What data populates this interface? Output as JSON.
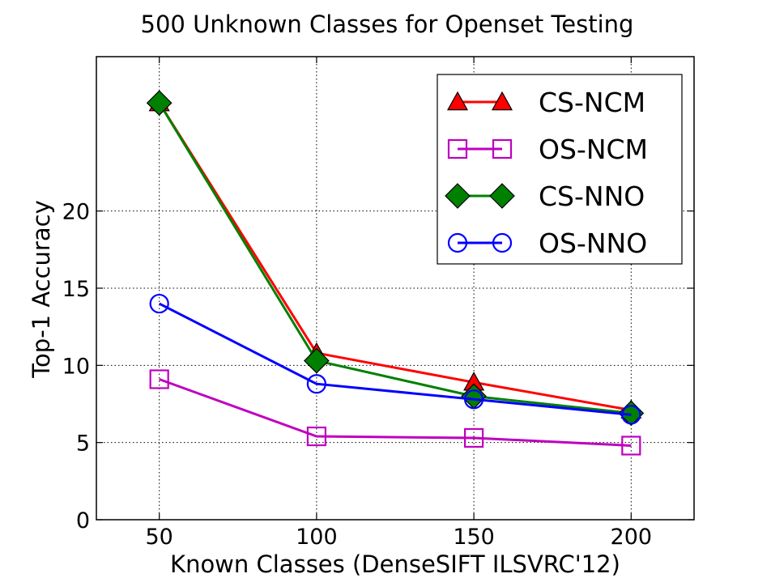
{
  "chart_data": {
    "type": "line",
    "title": "500 Unknown Classes for Openset Testing",
    "xlabel": "Known Classes (DenseSIFT ILSVRC'12)",
    "ylabel": "Top-1 Accuracy",
    "x": [
      50,
      100,
      150,
      200
    ],
    "xlim": [
      30,
      220
    ],
    "ylim": [
      0,
      30
    ],
    "xticks": [
      50,
      100,
      150,
      200
    ],
    "yticks": [
      0,
      5,
      10,
      15,
      20
    ],
    "xtick_labels": [
      "50",
      "100",
      "150",
      "200"
    ],
    "ytick_labels": [
      "0",
      "5",
      "10",
      "15",
      "20"
    ],
    "grid": true,
    "legend_position": "top-right",
    "series": [
      {
        "name": "CS-NCM",
        "values": [
          27.0,
          10.8,
          8.9,
          7.1
        ],
        "color": "#ff0000",
        "marker": "triangle"
      },
      {
        "name": "OS-NCM",
        "values": [
          9.1,
          5.4,
          5.3,
          4.8
        ],
        "color": "#bf00bf",
        "marker": "square"
      },
      {
        "name": "CS-NNO",
        "values": [
          27.0,
          10.3,
          8.0,
          6.9
        ],
        "color": "#008000",
        "marker": "diamond"
      },
      {
        "name": "OS-NNO",
        "values": [
          14.0,
          8.8,
          7.8,
          6.8
        ],
        "color": "#0000ff",
        "marker": "circle"
      }
    ]
  }
}
